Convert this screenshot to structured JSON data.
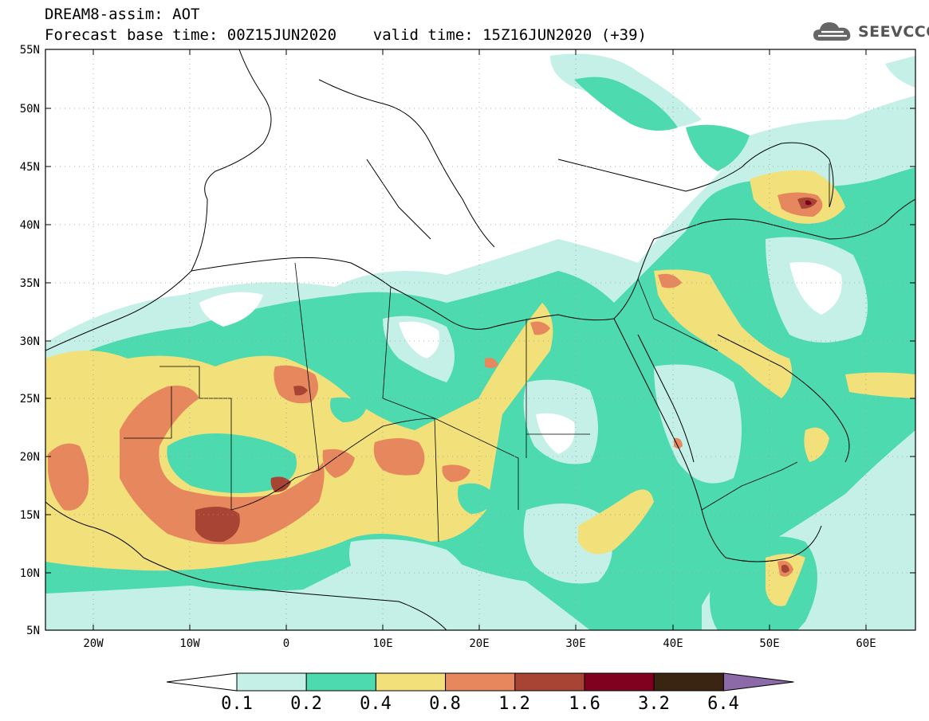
{
  "header": {
    "line1": "DREAM8-assim: AOT",
    "line2": "Forecast base time: 00Z15JUN2020    valid time: 15Z16JUN2020 (+39)"
  },
  "brand": {
    "name": "SEEVCCC",
    "icon": "cloud-icon"
  },
  "map": {
    "projection": "lat-lon",
    "lon_range": [
      -25,
      65
    ],
    "lat_range": [
      5,
      55
    ],
    "lat_ticks": [
      "55N",
      "50N",
      "45N",
      "40N",
      "35N",
      "30N",
      "25N",
      "20N",
      "15N",
      "10N",
      "5N"
    ],
    "lon_ticks": [
      "20W",
      "10W",
      "0",
      "10E",
      "20E",
      "30E",
      "40E",
      "50E",
      "60E"
    ],
    "field": "Aerosol optical thickness (AOT)"
  },
  "colorbar": {
    "labels": [
      "0.1",
      "0.2",
      "0.4",
      "0.8",
      "1.2",
      "1.6",
      "3.2",
      "6.4"
    ],
    "colors": [
      "#ffffff",
      "#c4f0e8",
      "#4ddaae",
      "#f2e07a",
      "#e6875e",
      "#a84434",
      "#800020",
      "#3a2412",
      "#8c6aa8"
    ]
  }
}
